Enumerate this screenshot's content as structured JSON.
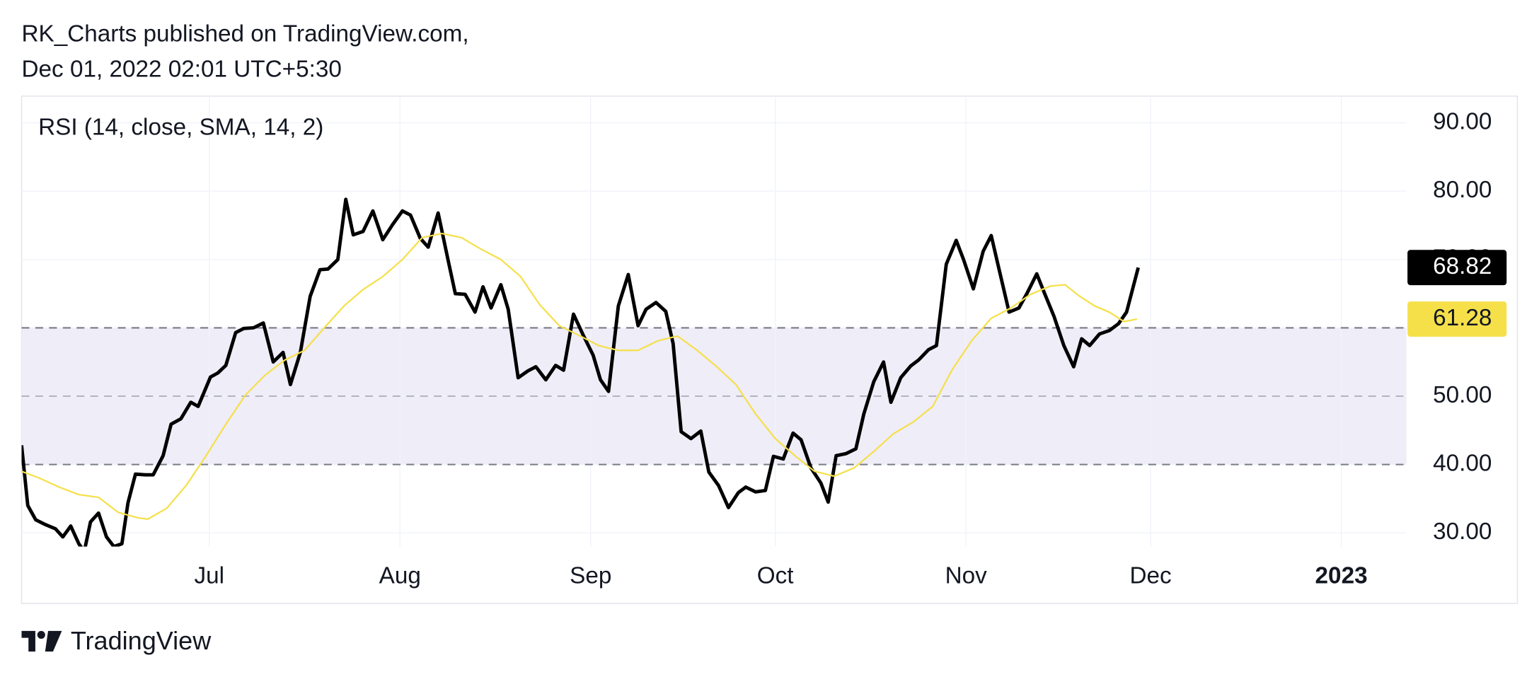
{
  "header": {
    "line1": "RK_Charts published on TradingView.com,",
    "line2": "Dec 01, 2022 02:01 UTC+5:30"
  },
  "footer": {
    "brand": "TradingView"
  },
  "chart_data": {
    "type": "line",
    "title": "RSI (14, close, SMA, 14, 2)",
    "xlim": [
      151.5,
      376.6
    ],
    "xticks": [
      {
        "value": 182,
        "label": "Jul"
      },
      {
        "value": 213,
        "label": "Aug"
      },
      {
        "value": 244,
        "label": "Sep"
      },
      {
        "value": 274,
        "label": "Oct"
      },
      {
        "value": 305,
        "label": "Nov"
      },
      {
        "value": 335,
        "label": "Dec"
      },
      {
        "value": 366,
        "label": "2023"
      }
    ],
    "ylim": [
      28,
      93.9
    ],
    "yticks": [
      {
        "value": 30,
        "label": "30.00"
      },
      {
        "value": 40,
        "label": "40.00"
      },
      {
        "value": 50,
        "label": "50.00"
      },
      {
        "value": 60,
        "label": "60.00"
      },
      {
        "value": 70,
        "label": "70.00"
      },
      {
        "value": 80,
        "label": "80.00"
      },
      {
        "value": 90,
        "label": "90.00"
      }
    ],
    "grid": true,
    "bands": {
      "upper": 60,
      "middle": 50,
      "lower": 40,
      "color": "#efedf8"
    },
    "series": [
      {
        "name": "RSI",
        "color": "#000000",
        "x": [
          151.5,
          152.5,
          153.8,
          155.4,
          157,
          158.2,
          159.5,
          160.8,
          161.7,
          162.7,
          164,
          165.3,
          166.5,
          167.8,
          168.8,
          170,
          171.6,
          172.9,
          174.5,
          175.8,
          177.4,
          179,
          180.2,
          182.2,
          183.4,
          184.7,
          186.3,
          187.6,
          189.2,
          190.8,
          192.4,
          194,
          195.2,
          196.8,
          198.4,
          200,
          201.3,
          202.9,
          204.2,
          205.4,
          207,
          208.6,
          210.2,
          211.8,
          213.4,
          214.7,
          216.3,
          217.6,
          219.2,
          220.8,
          222,
          223.6,
          225.2,
          226.5,
          227.8,
          229.4,
          230.6,
          232.2,
          233.8,
          235.1,
          236.7,
          238.3,
          239.6,
          241.2,
          242.8,
          244.4,
          245.6,
          246.9,
          248.5,
          250.1,
          251.7,
          253,
          254.6,
          256.2,
          257.4,
          258.7,
          260.3,
          261.9,
          263.2,
          264.8,
          266.4,
          268,
          269.2,
          270.8,
          272.4,
          273.7,
          275.3,
          276.9,
          278.2,
          279.8,
          281.4,
          282.6,
          283.9,
          285.5,
          287.1,
          288.4,
          290,
          291.6,
          292.8,
          294.4,
          296,
          297.3,
          298.9,
          300.2,
          301.8,
          303.4,
          304.6,
          306.2,
          307.8,
          309.1,
          310.4,
          312,
          313.6,
          314.9,
          316.5,
          317.7,
          319.3,
          320.9,
          322.5,
          323.8,
          325.1,
          326.7,
          328.3,
          329.8,
          331.1,
          333
        ],
        "values": [
          42.8,
          34,
          31.9,
          31.2,
          30.6,
          29.4,
          31,
          28.4,
          27.3,
          31.6,
          32.9,
          29.4,
          28,
          28.4,
          34.4,
          38.6,
          38.5,
          38.5,
          41.3,
          45.9,
          46.7,
          49.1,
          48.5,
          52.8,
          53.4,
          54.5,
          59.3,
          59.9,
          60,
          60.7,
          55,
          56.4,
          51.7,
          56.4,
          64.6,
          68.5,
          68.6,
          70,
          78.8,
          73.6,
          74.1,
          77.1,
          72.9,
          75.1,
          77.1,
          76.5,
          73.1,
          71.8,
          76.8,
          70,
          65,
          64.9,
          62.3,
          66,
          62.9,
          66.3,
          62.7,
          52.7,
          53.7,
          54.3,
          52.4,
          54.5,
          53.8,
          62,
          58.9,
          56,
          52.4,
          50.7,
          63.2,
          67.8,
          60.3,
          62.7,
          63.7,
          62.4,
          57.7,
          44.8,
          43.8,
          44.9,
          38.9,
          36.9,
          33.7,
          35.9,
          36.7,
          36,
          36.2,
          41.2,
          40.8,
          44.6,
          43.6,
          39.5,
          37.3,
          34.5,
          41.3,
          41.6,
          42.3,
          47.4,
          52.1,
          55,
          49.1,
          52.7,
          54.4,
          55.3,
          56.8,
          57.4,
          69.3,
          72.8,
          70,
          65.7,
          71.2,
          73.5,
          68.5,
          62.3,
          62.9,
          65,
          67.9,
          65.2,
          61.7,
          57.4,
          54.3,
          58.4,
          57.4,
          59.1,
          59.6,
          60.6,
          62.3,
          68.82
        ]
      },
      {
        "name": "SMA",
        "color": "#f5e04a",
        "x": [
          151.5,
          154.4,
          157.6,
          160.8,
          164,
          167.2,
          170.4,
          172,
          175.1,
          178.3,
          181.5,
          184.7,
          187.9,
          191.1,
          194.3,
          197.5,
          200.7,
          203.9,
          207,
          210.2,
          213.4,
          216.6,
          219.8,
          223,
          226.2,
          229.4,
          232.6,
          235.7,
          238.9,
          242.1,
          245.3,
          248.5,
          251.7,
          254.9,
          258.1,
          261.3,
          264.5,
          267.6,
          270.8,
          274,
          277.2,
          280.4,
          283.6,
          286.8,
          290,
          293.2,
          296.4,
          299.6,
          302.7,
          305.9,
          309.1,
          312.3,
          315.5,
          318.7,
          321.1,
          323.5,
          325.9,
          328.3,
          330.7,
          332.8
        ],
        "values": [
          39,
          38,
          36.7,
          35.6,
          35.2,
          33,
          32.2,
          32,
          33.6,
          37,
          41.3,
          45.9,
          50.2,
          53.1,
          55.3,
          56.7,
          60,
          63.2,
          65.6,
          67.5,
          70,
          73.2,
          73.8,
          73.2,
          71.5,
          70,
          67.5,
          63.4,
          60.3,
          58.9,
          57.4,
          56.7,
          56.7,
          58.1,
          58.8,
          56.7,
          54.3,
          51.7,
          47.4,
          43.8,
          41.3,
          39,
          38.3,
          39.5,
          41.9,
          44.5,
          46.2,
          48.5,
          53.8,
          58.1,
          61.4,
          62.9,
          64.9,
          66.1,
          66.3,
          64.6,
          63.2,
          62.3,
          60.9,
          61.28
        ]
      }
    ]
  }
}
